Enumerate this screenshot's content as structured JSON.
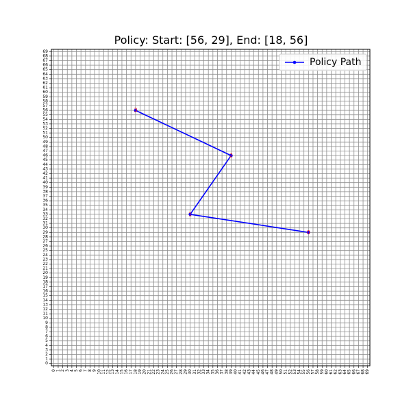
{
  "chart_data": {
    "type": "line",
    "title": "Policy: Start: [56, 29], End: [18, 56]",
    "xlabel": "",
    "ylabel": "",
    "xlim": [
      -0.5,
      69.5
    ],
    "ylim": [
      -0.5,
      69.5
    ],
    "xticks_range": [
      0,
      69
    ],
    "yticks_range": [
      0,
      69
    ],
    "grid": true,
    "legend_position": "top-right",
    "series": [
      {
        "name": "Policy Path",
        "color": "#0000ff",
        "marker": "circle",
        "points": [
          [
            56,
            29
          ],
          [
            30,
            33
          ],
          [
            39,
            46
          ],
          [
            18,
            56
          ]
        ]
      }
    ],
    "point_labels": [
      {
        "x": 56,
        "y": 29,
        "text": "0"
      },
      {
        "x": 30,
        "y": 33,
        "text": "1"
      },
      {
        "x": 39,
        "y": 46,
        "text": "2"
      },
      {
        "x": 18,
        "y": 56,
        "text": "3"
      }
    ],
    "label_color": "#ff0000"
  }
}
